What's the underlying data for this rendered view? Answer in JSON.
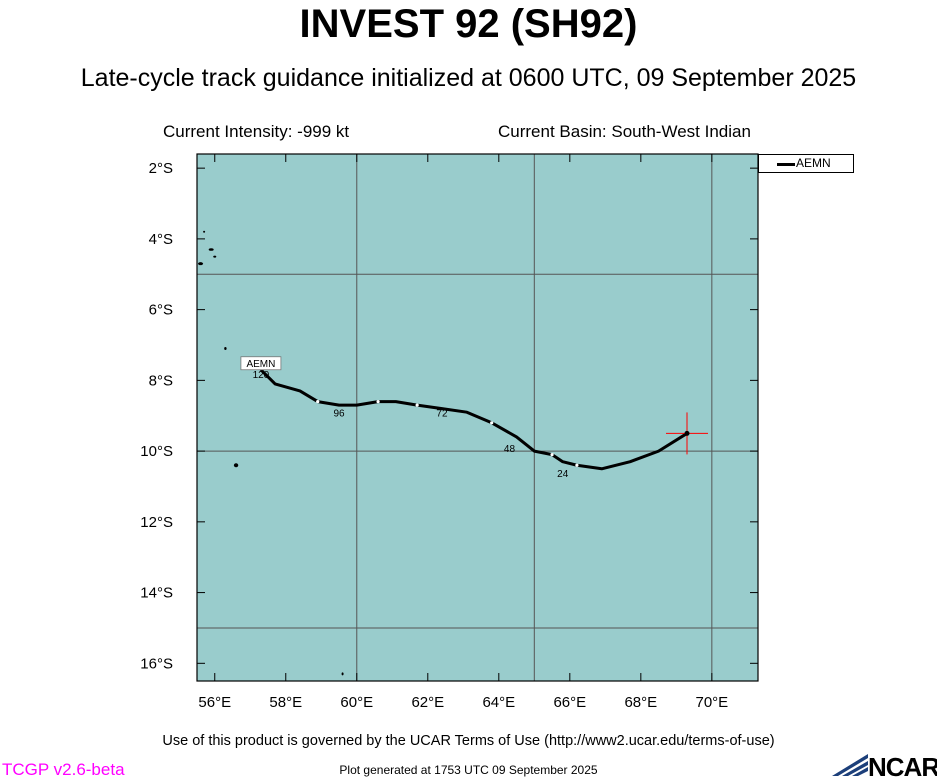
{
  "header": {
    "title": "INVEST 92 (SH92)",
    "subtitle": "Late-cycle track guidance initialized at 0600 UTC, 09 September 2025",
    "intensity": "Current Intensity: -999 kt",
    "basin": "Current Basin: South-West Indian"
  },
  "footer": {
    "terms": "Use of this product is governed by the UCAR Terms of Use (http://www2.ucar.edu/terms-of-use)",
    "version": "TCGP v2.6-beta",
    "generated": "Plot generated at 1753 UTC   09 September 2025",
    "logo_text": "NCAR"
  },
  "legend": {
    "label": "AEMN"
  },
  "map": {
    "lon_range": [
      55.5,
      71.3
    ],
    "lat_range": [
      -16.5,
      -1.6
    ],
    "lon_ticks": [
      56,
      58,
      60,
      62,
      64,
      66,
      68,
      70
    ],
    "lon_tick_labels": [
      "56°E",
      "58°E",
      "60°E",
      "62°E",
      "64°E",
      "66°E",
      "68°E",
      "70°E"
    ],
    "lat_ticks": [
      -2,
      -4,
      -6,
      -8,
      -10,
      -12,
      -14,
      -16
    ],
    "lat_tick_labels": [
      "2°S",
      "4°S",
      "6°S",
      "8°S",
      "10°S",
      "12°S",
      "14°S",
      "16°S"
    ],
    "gridlines_lon": [
      60,
      65,
      70
    ],
    "gridlines_lat": [
      -5,
      -10,
      -15
    ],
    "colors": {
      "ocean": "#99cccc",
      "grid": "#555555",
      "track": "#000000",
      "marker": "#ff0000",
      "tau_dot": "#ffffff"
    }
  },
  "chart_data": {
    "type": "line",
    "series": [
      {
        "name": "AEMN",
        "lon": [
          69.3,
          68.5,
          67.7,
          66.9,
          66.2,
          65.8,
          65.5,
          65.0,
          64.5,
          63.8,
          63.1,
          62.4,
          61.7,
          61.1,
          60.6,
          60.0,
          59.5,
          58.9,
          58.4,
          57.7,
          57.3
        ],
        "lat": [
          -9.5,
          -10.0,
          -10.3,
          -10.5,
          -10.4,
          -10.3,
          -10.1,
          -10.0,
          -9.6,
          -9.2,
          -8.9,
          -8.8,
          -8.7,
          -8.6,
          -8.6,
          -8.7,
          -8.7,
          -8.6,
          -8.3,
          -8.1,
          -7.7
        ],
        "tau_labels": [
          {
            "text": "24",
            "lon": 65.8,
            "lat": -10.5
          },
          {
            "text": "48",
            "lon": 64.3,
            "lat": -9.8
          },
          {
            "text": "72",
            "lon": 62.4,
            "lat": -8.8
          },
          {
            "text": "96",
            "lon": 59.5,
            "lat": -8.8
          },
          {
            "text": "120",
            "lon": 57.3,
            "lat": -7.7
          }
        ]
      }
    ],
    "current_position": {
      "lon": 69.3,
      "lat": -9.5
    },
    "track_end_label": "AEMN"
  }
}
